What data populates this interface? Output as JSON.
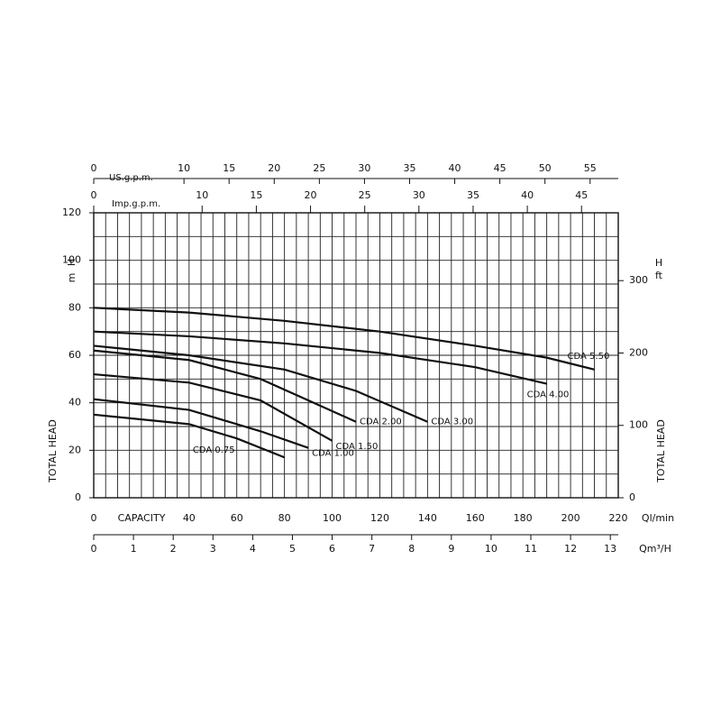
{
  "chart_data": {
    "type": "line",
    "xlim": [
      0,
      220
    ],
    "xticks": [
      0,
      40,
      60,
      80,
      100,
      120,
      140,
      160,
      180,
      200,
      220
    ],
    "xlabel": "CAPACITY",
    "xunit": "Ql/min",
    "x_gridlines": [
      0,
      5,
      10,
      15,
      20,
      25,
      30,
      35,
      40,
      45,
      50,
      55,
      60,
      65,
      70,
      75,
      80,
      85,
      90,
      95,
      100,
      105,
      110,
      115,
      120,
      125,
      130,
      135,
      140,
      145,
      150,
      155,
      160,
      165,
      170,
      175,
      180,
      185,
      190,
      195,
      200,
      205,
      210,
      215,
      220
    ],
    "ylim": [
      0,
      120
    ],
    "yticks": [
      0,
      20,
      40,
      60,
      80,
      100,
      120
    ],
    "y_gridlines": [
      0,
      10,
      20,
      30,
      40,
      50,
      60,
      70,
      80,
      90,
      100,
      110,
      120
    ],
    "ylabel": "TOTAL HEAD",
    "yunit": [
      "H",
      "m"
    ],
    "y2lim": [
      0,
      393.7
    ],
    "y2ticks": [
      0,
      100,
      200,
      300
    ],
    "y2label": "TOTAL HEAD",
    "y2unit": [
      "H",
      "ft"
    ],
    "m3h_axis": {
      "label": "Qm³/H",
      "lim": [
        0,
        13.2
      ],
      "ticks": [
        0,
        1,
        2,
        3,
        4,
        5,
        6,
        7,
        8,
        9,
        10,
        11,
        12,
        13
      ]
    },
    "usgpm_axis": {
      "label": "US.g.p.m.",
      "lim": [
        0,
        58.12
      ],
      "ticks": [
        0,
        10,
        15,
        20,
        25,
        30,
        35,
        40,
        45,
        50,
        55
      ]
    },
    "impgpm_axis": {
      "label": "Imp.g.p.m.",
      "lim": [
        0,
        48.39
      ],
      "ticks": [
        0,
        10,
        15,
        20,
        25,
        30,
        35,
        40,
        45
      ]
    },
    "grid": true,
    "series": [
      {
        "name": "CDA 5.50",
        "color": "#111111",
        "x": [
          0,
          40,
          80,
          120,
          160,
          190,
          210
        ],
        "values": [
          80,
          78,
          74.5,
          70,
          64,
          59,
          54
        ]
      },
      {
        "name": "CDA 4.00",
        "color": "#111111",
        "x": [
          0,
          40,
          80,
          120,
          160,
          190
        ],
        "values": [
          70,
          68,
          65,
          61,
          55,
          48
        ]
      },
      {
        "name": "CDA 3.00",
        "color": "#111111",
        "x": [
          0,
          40,
          80,
          110,
          140
        ],
        "values": [
          64,
          60,
          54,
          45,
          32
        ]
      },
      {
        "name": "CDA 2.00",
        "color": "#111111",
        "x": [
          0,
          40,
          70,
          90,
          110
        ],
        "values": [
          62,
          58,
          50,
          41,
          32
        ]
      },
      {
        "name": "CDA 1.50",
        "color": "#111111",
        "x": [
          0,
          40,
          70,
          100
        ],
        "values": [
          52,
          48.5,
          41,
          24
        ]
      },
      {
        "name": "CDA 1.00",
        "color": "#111111",
        "x": [
          0,
          40,
          70,
          90
        ],
        "values": [
          41.5,
          37,
          28,
          21
        ]
      },
      {
        "name": "CDA 0.75",
        "color": "#111111",
        "x": [
          0,
          40,
          60,
          80
        ],
        "values": [
          35,
          31,
          25,
          17
        ]
      }
    ]
  }
}
